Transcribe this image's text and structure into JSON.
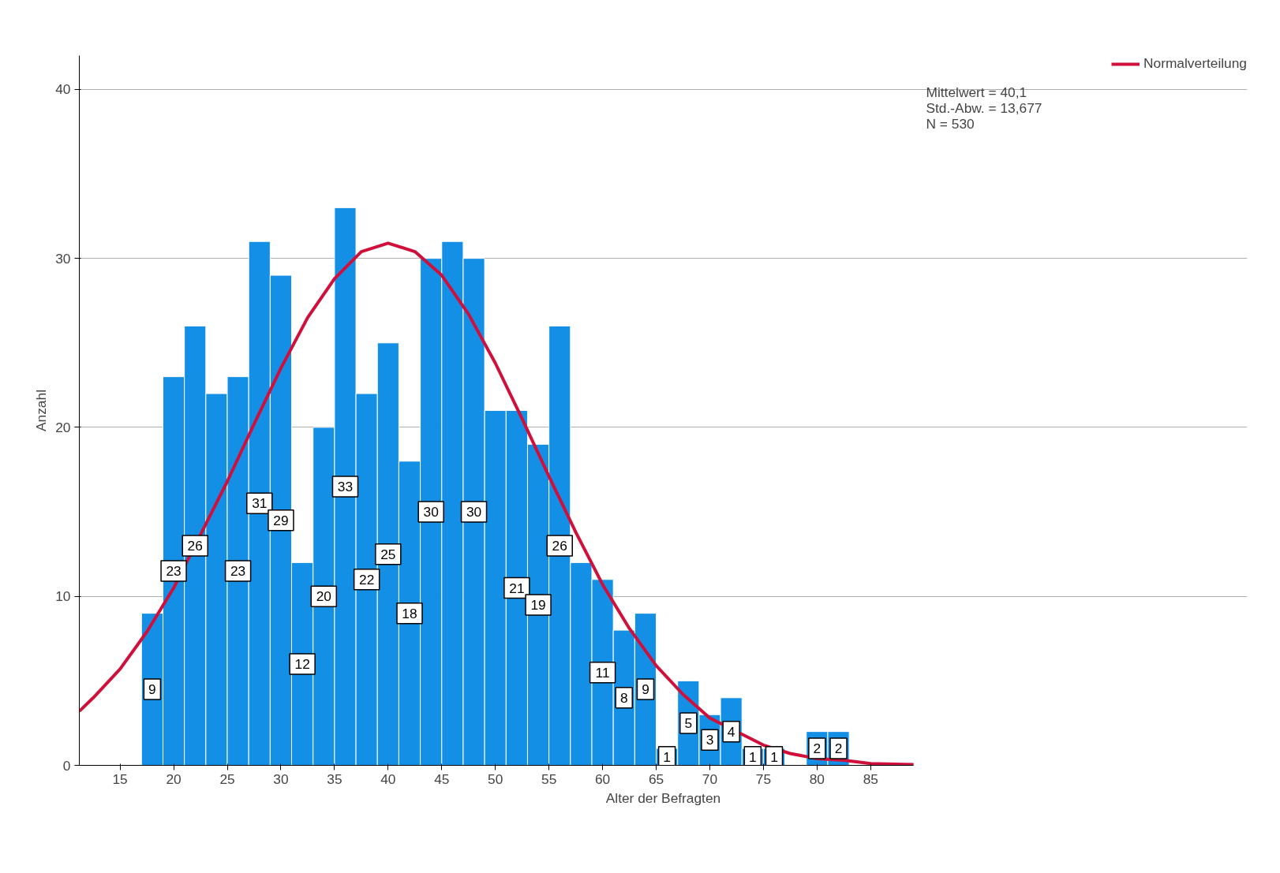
{
  "chart_data": {
    "type": "histogram",
    "xlabel": "Alter der Befragten",
    "ylabel": "Anzahl",
    "xlim": [
      11.2,
      89
    ],
    "ylim": [
      0,
      42
    ],
    "xticks": [
      15,
      20,
      25,
      30,
      35,
      40,
      45,
      50,
      55,
      60,
      65,
      70,
      75,
      80,
      85
    ],
    "yticks": [
      0,
      10,
      20,
      30,
      40
    ],
    "grid": "y",
    "legend": "top right",
    "annotations": [
      "Mittelwert = 40,1\nStd.-Abw. = 13,677\nN = 530"
    ],
    "series": [
      {
        "color": "#148fe6",
        "bins": [
          17,
          19,
          21,
          23,
          25,
          27,
          29,
          31,
          33,
          35,
          37,
          39,
          41,
          43,
          45,
          47,
          49,
          51,
          53,
          55,
          57,
          59,
          61,
          63,
          65,
          67,
          69,
          71,
          73,
          75,
          77,
          79,
          81,
          83
        ],
        "values": [
          9,
          23,
          26,
          22,
          23,
          31,
          29,
          12,
          20,
          33,
          22,
          25,
          18,
          30,
          31,
          30,
          21,
          21,
          19,
          26,
          12,
          11,
          8,
          9,
          1,
          5,
          3,
          4,
          1,
          1,
          0,
          2,
          2
        ],
        "value_labels": [
          "9",
          "23",
          "26",
          null,
          "23",
          "31",
          "29",
          "12",
          "20",
          "33",
          "22",
          "25",
          "18",
          "30",
          null,
          "30",
          null,
          "21",
          "19",
          "26",
          null,
          "11",
          "8",
          "9",
          "1",
          "5",
          "3",
          "4",
          "1",
          "1",
          null,
          "2",
          "2"
        ]
      },
      {
        "type": "line",
        "name": "Normalverteilung",
        "color": "#d0103a",
        "x": [
          11.2,
          12.5,
          15,
          17.5,
          20,
          25,
          27.5,
          30,
          32.5,
          35,
          37.5,
          40,
          42.5,
          45,
          47.5,
          50,
          52.5,
          55,
          57.5,
          60,
          62.5,
          65,
          67.5,
          70,
          75,
          77.5,
          80,
          82.5,
          85,
          89
        ],
        "values": [
          3.2,
          4.0,
          5.7,
          7.9,
          10.5,
          16.8,
          20.2,
          23.5,
          26.5,
          28.8,
          30.4,
          30.9,
          30.4,
          29.0,
          26.7,
          23.8,
          20.5,
          17.1,
          13.8,
          10.7,
          8.1,
          5.9,
          4.2,
          2.8,
          1.2,
          0.7,
          0.4,
          0.3,
          0.1,
          0.05
        ]
      }
    ]
  }
}
